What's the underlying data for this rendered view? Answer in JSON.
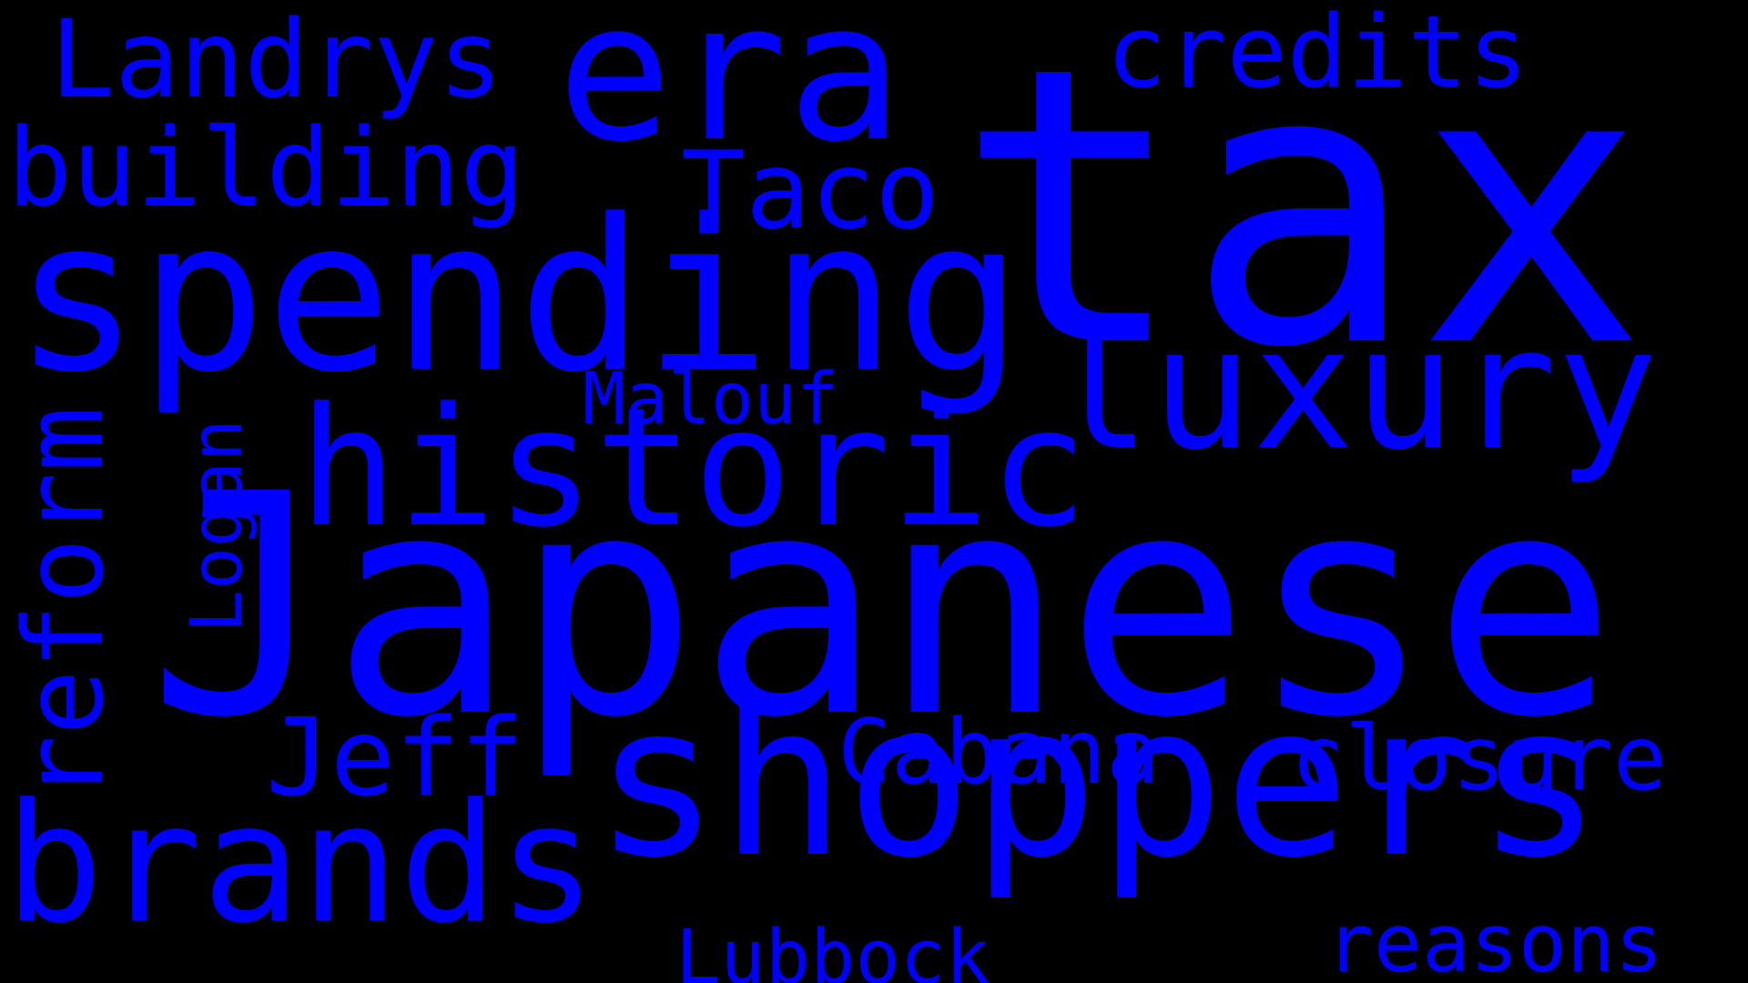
{
  "wordcloud": {
    "background": "#000000",
    "word_color": "#0000ff",
    "words": {
      "tax": "tax",
      "japanese": "Japanese",
      "shoppers": "shoppers",
      "spending": "spending",
      "era": "era",
      "historic": "historic",
      "luxury": "luxury",
      "brands": "brands",
      "building": "building",
      "landrys": "Landrys",
      "credits": "credits",
      "taco": "Taco",
      "jeff": "Jeff",
      "cabana": "Cabana",
      "closure": "closure",
      "reasons": "reasons",
      "lubbock": "Lubbock",
      "malouf": "Malouf",
      "reform": "reform",
      "logan": "Logan"
    }
  }
}
